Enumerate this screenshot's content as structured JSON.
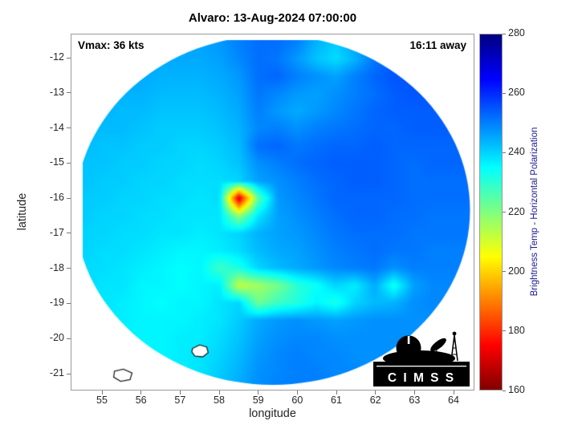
{
  "title": "Alvaro: 13-Aug-2024 07:00:00",
  "annotations": {
    "vmax": "Vmax: 36 kts",
    "timing": "16:11 away"
  },
  "axes": {
    "xlabel": "longitude",
    "ylabel": "latitude",
    "x_ticks": [
      55,
      56,
      57,
      58,
      59,
      60,
      61,
      62,
      63,
      64
    ],
    "y_ticks": [
      -12,
      -13,
      -14,
      -15,
      -16,
      -17,
      -18,
      -19,
      -20,
      -21
    ]
  },
  "colorbar": {
    "label": "Brightness Temp - Horizontal Polarization",
    "min": 160,
    "max": 280,
    "ticks": [
      160,
      180,
      200,
      220,
      240,
      260,
      280
    ]
  },
  "logo": {
    "text": "C I M S S"
  },
  "chart_data": {
    "type": "heatmap",
    "title": "Alvaro: 13-Aug-2024 07:00:00",
    "xlabel": "longitude",
    "ylabel": "latitude",
    "colorbar_label": "Brightness Temp - Horizontal Polarization",
    "value_range": [
      160,
      280
    ],
    "colormap": "jet_reversed_low_is_red",
    "xlim": [
      54.2,
      64.55
    ],
    "ylim": [
      -21.5,
      -11.3
    ],
    "swath_center": {
      "lon": 59.37,
      "lat": -16.34
    },
    "swath_radius_deg": 5.05,
    "lon": [
      54.5,
      55,
      55.5,
      56,
      56.5,
      57,
      57.5,
      58,
      58.5,
      59,
      59.5,
      60,
      60.5,
      61,
      61.5,
      62,
      62.5,
      63,
      63.5,
      64,
      64.5
    ],
    "lat": [
      -11.5,
      -12,
      -12.5,
      -13,
      -13.5,
      -14,
      -14.5,
      -15,
      -15.5,
      -16,
      -16.5,
      -17,
      -17.5,
      -18,
      -18.5,
      -19,
      -19.5,
      -20,
      -20.5,
      -21,
      -21.5
    ],
    "brightness_temp_K": [
      [
        248,
        248,
        248,
        247,
        247,
        246,
        246,
        247,
        250,
        252,
        252,
        250,
        244,
        241,
        246,
        252,
        254,
        255,
        255,
        255,
        255
      ],
      [
        247,
        247,
        246,
        246,
        245,
        245,
        245,
        246,
        249,
        252,
        251,
        247,
        242,
        239,
        244,
        251,
        254,
        255,
        255,
        255,
        255
      ],
      [
        246,
        246,
        245,
        245,
        244,
        244,
        244,
        245,
        247,
        252,
        253,
        250,
        248,
        246,
        250,
        253,
        255,
        255,
        255,
        255,
        255
      ],
      [
        245,
        245,
        244,
        244,
        243,
        243,
        243,
        244,
        246,
        251,
        249,
        247,
        246,
        248,
        250,
        252,
        254,
        255,
        255,
        255,
        255
      ],
      [
        244,
        244,
        243,
        243,
        242,
        242,
        242,
        243,
        245,
        250,
        247,
        245,
        247,
        249,
        251,
        253,
        254,
        254,
        254,
        254,
        254
      ],
      [
        243,
        243,
        243,
        242,
        241,
        241,
        241,
        242,
        244,
        249,
        250,
        248,
        250,
        251,
        252,
        253,
        253,
        254,
        254,
        254,
        254
      ],
      [
        243,
        242,
        242,
        241,
        241,
        240,
        240,
        241,
        243,
        252,
        253,
        251,
        252,
        253,
        253,
        254,
        253,
        253,
        253,
        253,
        253
      ],
      [
        242,
        242,
        241,
        241,
        240,
        240,
        239,
        240,
        242,
        248,
        250,
        252,
        253,
        254,
        254,
        254,
        253,
        252,
        253,
        253,
        253
      ],
      [
        242,
        241,
        241,
        240,
        240,
        239,
        239,
        239,
        240,
        246,
        248,
        250,
        252,
        253,
        254,
        254,
        253,
        252,
        252,
        252,
        252
      ],
      [
        241,
        241,
        240,
        240,
        239,
        239,
        238,
        239,
        170,
        225,
        247,
        249,
        251,
        253,
        253,
        253,
        253,
        252,
        252,
        252,
        252
      ],
      [
        241,
        240,
        240,
        239,
        239,
        238,
        238,
        238,
        218,
        238,
        246,
        248,
        250,
        252,
        253,
        253,
        252,
        252,
        251,
        251,
        251
      ],
      [
        240,
        240,
        239,
        239,
        238,
        238,
        237,
        238,
        240,
        244,
        246,
        247,
        249,
        251,
        252,
        252,
        252,
        251,
        251,
        251,
        251
      ],
      [
        240,
        239,
        239,
        238,
        237,
        236,
        236,
        237,
        239,
        243,
        245,
        246,
        248,
        250,
        251,
        252,
        251,
        251,
        250,
        250,
        250
      ],
      [
        239,
        239,
        238,
        237,
        236,
        235,
        236,
        228,
        232,
        240,
        243,
        245,
        247,
        249,
        250,
        251,
        248,
        250,
        250,
        250,
        250
      ],
      [
        239,
        238,
        238,
        236,
        236,
        235,
        236,
        237,
        212,
        216,
        221,
        230,
        234,
        240,
        237,
        245,
        233,
        246,
        249,
        249,
        249
      ],
      [
        238,
        238,
        237,
        236,
        235,
        236,
        236,
        238,
        240,
        222,
        228,
        231,
        236,
        232,
        240,
        243,
        244,
        248,
        249,
        249,
        249
      ],
      [
        238,
        237,
        237,
        236,
        236,
        236,
        237,
        238,
        241,
        245,
        247,
        248,
        247,
        246,
        247,
        248,
        248,
        248,
        248,
        248,
        248
      ],
      [
        238,
        237,
        236,
        236,
        236,
        237,
        237,
        239,
        242,
        246,
        248,
        249,
        249,
        248,
        248,
        248,
        248,
        248,
        248,
        248,
        248
      ],
      [
        237,
        237,
        236,
        236,
        236,
        237,
        238,
        240,
        243,
        247,
        249,
        250,
        249,
        249,
        248,
        248,
        248,
        248,
        248,
        248,
        248
      ],
      [
        237,
        237,
        236,
        236,
        237,
        237,
        238,
        241,
        244,
        248,
        249,
        250,
        250,
        249,
        249,
        248,
        248,
        248,
        248,
        248,
        248
      ],
      [
        237,
        237,
        236,
        236,
        237,
        238,
        239,
        242,
        245,
        248,
        250,
        250,
        250,
        249,
        249,
        249,
        248,
        248,
        248,
        248,
        248
      ]
    ],
    "coastlines": [
      [
        [
          57.32,
          -20.28
        ],
        [
          57.5,
          -20.18
        ],
        [
          57.68,
          -20.24
        ],
        [
          57.72,
          -20.4
        ],
        [
          57.58,
          -20.52
        ],
        [
          57.38,
          -20.5
        ],
        [
          57.3,
          -20.38
        ]
      ],
      [
        [
          55.32,
          -20.93
        ],
        [
          55.55,
          -20.87
        ],
        [
          55.77,
          -20.98
        ],
        [
          55.72,
          -21.17
        ],
        [
          55.48,
          -21.22
        ],
        [
          55.3,
          -21.1
        ]
      ]
    ]
  }
}
